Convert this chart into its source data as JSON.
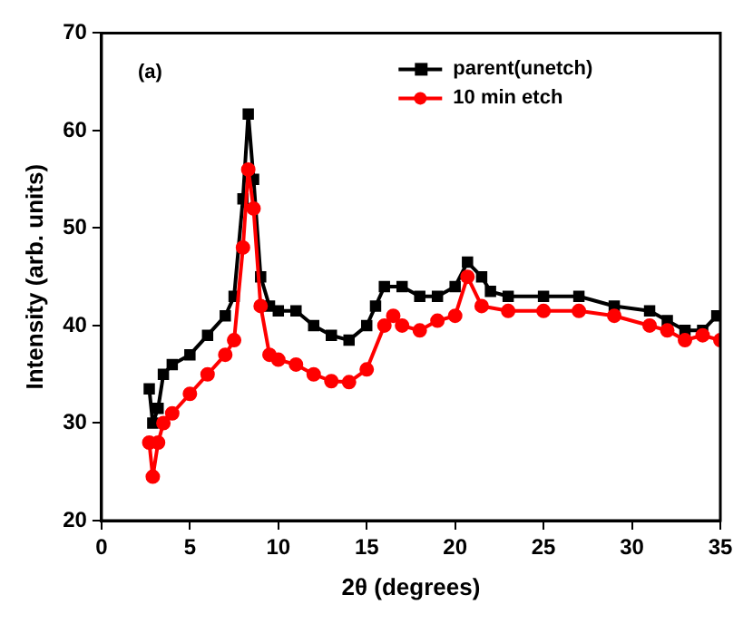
{
  "chart_data": {
    "type": "line",
    "xlabel": "2θ (degrees)",
    "ylabel": "Intensity (arb. units)",
    "annotations": [
      "(a)"
    ],
    "xlim": [
      0,
      35
    ],
    "xticks": [
      0,
      5,
      10,
      15,
      20,
      25,
      30,
      35
    ],
    "ylim": [
      20,
      70
    ],
    "yticks": [
      20,
      30,
      40,
      50,
      60,
      70
    ],
    "legend": "top right",
    "grid": false,
    "series": [
      {
        "name": "parent(unetch)",
        "color": "#000000",
        "marker": "square",
        "x": [
          2.7,
          2.9,
          3.2,
          3.5,
          4,
          5,
          6,
          7,
          7.5,
          8,
          8.3,
          8.6,
          9,
          9.5,
          10,
          11,
          12,
          13,
          14,
          15,
          15.5,
          16,
          17,
          18,
          19,
          20,
          20.7,
          21.5,
          22,
          23,
          25,
          27,
          29,
          31,
          32,
          33,
          34,
          34.8
        ],
        "values": [
          33.5,
          30,
          31.5,
          35,
          36,
          37,
          39,
          41,
          43,
          53,
          61.7,
          55,
          45,
          42,
          41.5,
          41.5,
          40,
          39,
          38.5,
          40,
          42,
          44,
          44,
          43,
          43,
          44,
          46.5,
          45,
          43.5,
          43,
          43,
          43,
          42,
          41.5,
          40.5,
          39.5,
          39.5,
          41
        ]
      },
      {
        "name": "10 min etch",
        "color": "#ff0000",
        "marker": "circle",
        "x": [
          2.7,
          2.9,
          3.2,
          3.5,
          4,
          5,
          6,
          7,
          7.5,
          8,
          8.3,
          8.6,
          9,
          9.5,
          10,
          11,
          12,
          13,
          14,
          15,
          16,
          16.5,
          17,
          18,
          19,
          20,
          20.7,
          21.5,
          23,
          25,
          27,
          29,
          31,
          32,
          33,
          34,
          35
        ],
        "values": [
          28,
          24.5,
          28,
          30,
          31,
          33,
          35,
          37,
          38.5,
          48,
          56,
          52,
          42,
          37,
          36.5,
          36,
          35,
          34.3,
          34.2,
          35.5,
          40,
          41,
          40,
          39.5,
          40.5,
          41,
          45,
          42,
          41.5,
          41.5,
          41.5,
          41,
          40,
          39.5,
          38.5,
          39,
          38.5
        ]
      }
    ]
  }
}
